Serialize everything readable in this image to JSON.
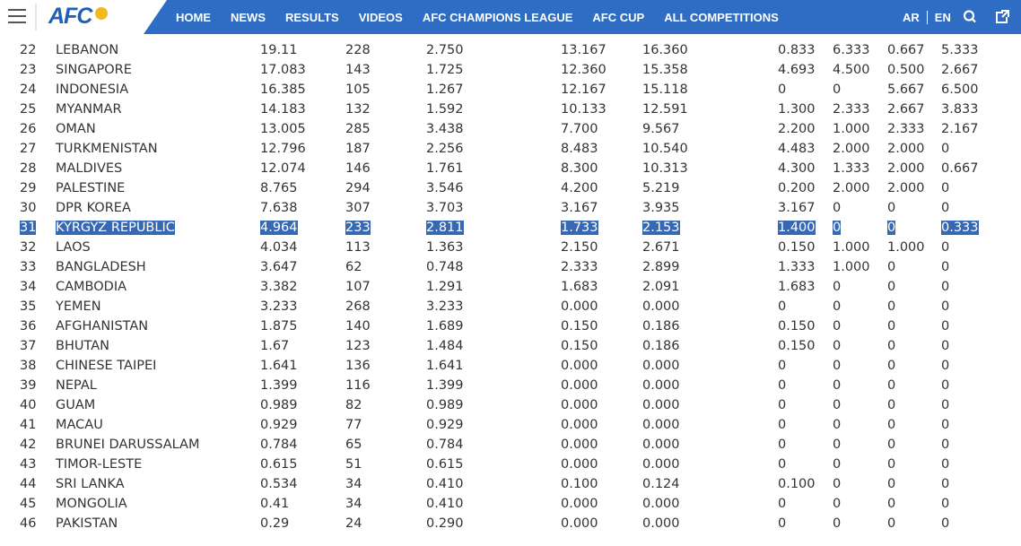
{
  "nav": {
    "logo": "AFC",
    "menu": [
      "HOME",
      "NEWS",
      "RESULTS",
      "VIDEOS",
      "AFC CHAMPIONS LEAGUE",
      "AFC CUP",
      "ALL COMPETITIONS"
    ],
    "languages": [
      "AR",
      "EN"
    ]
  },
  "table": {
    "rows": [
      [
        "22",
        "LEBANON",
        "19.11",
        "228",
        "2.750",
        "13.167",
        "16.360",
        "0.833",
        "6.333",
        "0.667",
        "5.333"
      ],
      [
        "23",
        "SINGAPORE",
        "17.083",
        "143",
        "1.725",
        "12.360",
        "15.358",
        "4.693",
        "4.500",
        "0.500",
        "2.667"
      ],
      [
        "24",
        "INDONESIA",
        "16.385",
        "105",
        "1.267",
        "12.167",
        "15.118",
        "0",
        "0",
        "5.667",
        "6.500"
      ],
      [
        "25",
        "MYANMAR",
        "14.183",
        "132",
        "1.592",
        "10.133",
        "12.591",
        "1.300",
        "2.333",
        "2.667",
        "3.833"
      ],
      [
        "26",
        "OMAN",
        "13.005",
        "285",
        "3.438",
        "7.700",
        "9.567",
        "2.200",
        "1.000",
        "2.333",
        "2.167"
      ],
      [
        "27",
        "TURKMENISTAN",
        "12.796",
        "187",
        "2.256",
        "8.483",
        "10.540",
        "4.483",
        "2.000",
        "2.000",
        "0"
      ],
      [
        "28",
        "MALDIVES",
        "12.074",
        "146",
        "1.761",
        "8.300",
        "10.313",
        "4.300",
        "1.333",
        "2.000",
        "0.667"
      ],
      [
        "29",
        "PALESTINE",
        "8.765",
        "294",
        "3.546",
        "4.200",
        "5.219",
        "0.200",
        "2.000",
        "2.000",
        "0"
      ],
      [
        "30",
        "DPR KOREA",
        "7.638",
        "307",
        "3.703",
        "3.167",
        "3.935",
        "3.167",
        "0",
        "0",
        "0"
      ],
      [
        "31",
        "KYRGYZ REPUBLIC",
        "4.964",
        "233",
        "2.811",
        "1.733",
        "2.153",
        "1.400",
        "0",
        "0",
        "0.333"
      ],
      [
        "32",
        "LAOS",
        "4.034",
        "113",
        "1.363",
        "2.150",
        "2.671",
        "0.150",
        "1.000",
        "1.000",
        "0"
      ],
      [
        "33",
        "BANGLADESH",
        "3.647",
        "62",
        "0.748",
        "2.333",
        "2.899",
        "1.333",
        "1.000",
        "0",
        "0"
      ],
      [
        "34",
        "CAMBODIA",
        "3.382",
        "107",
        "1.291",
        "1.683",
        "2.091",
        "1.683",
        "0",
        "0",
        "0"
      ],
      [
        "35",
        "YEMEN",
        "3.233",
        "268",
        "3.233",
        "0.000",
        "0.000",
        "0",
        "0",
        "0",
        "0"
      ],
      [
        "36",
        "AFGHANISTAN",
        "1.875",
        "140",
        "1.689",
        "0.150",
        "0.186",
        "0.150",
        "0",
        "0",
        "0"
      ],
      [
        "37",
        "BHUTAN",
        "1.67",
        "123",
        "1.484",
        "0.150",
        "0.186",
        "0.150",
        "0",
        "0",
        "0"
      ],
      [
        "38",
        "CHINESE TAIPEI",
        "1.641",
        "136",
        "1.641",
        "0.000",
        "0.000",
        "0",
        "0",
        "0",
        "0"
      ],
      [
        "39",
        "NEPAL",
        "1.399",
        "116",
        "1.399",
        "0.000",
        "0.000",
        "0",
        "0",
        "0",
        "0"
      ],
      [
        "40",
        "GUAM",
        "0.989",
        "82",
        "0.989",
        "0.000",
        "0.000",
        "0",
        "0",
        "0",
        "0"
      ],
      [
        "41",
        "MACAU",
        "0.929",
        "77",
        "0.929",
        "0.000",
        "0.000",
        "0",
        "0",
        "0",
        "0"
      ],
      [
        "42",
        "BRUNEI DARUSSALAM",
        "0.784",
        "65",
        "0.784",
        "0.000",
        "0.000",
        "0",
        "0",
        "0",
        "0"
      ],
      [
        "43",
        "TIMOR-LESTE",
        "0.615",
        "51",
        "0.615",
        "0.000",
        "0.000",
        "0",
        "0",
        "0",
        "0"
      ],
      [
        "44",
        "SRI LANKA",
        "0.534",
        "34",
        "0.410",
        "0.100",
        "0.124",
        "0.100",
        "0",
        "0",
        "0"
      ],
      [
        "45",
        "MONGOLIA",
        "0.41",
        "34",
        "0.410",
        "0.000",
        "0.000",
        "0",
        "0",
        "0",
        "0"
      ],
      [
        "46",
        "PAKISTAN",
        "0.29",
        "24",
        "0.290",
        "0.000",
        "0.000",
        "0",
        "0",
        "0",
        "0"
      ]
    ]
  }
}
